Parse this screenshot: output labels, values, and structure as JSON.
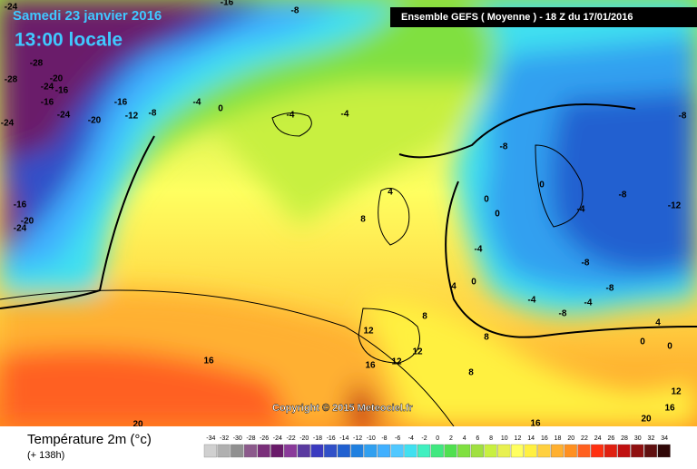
{
  "header": {
    "date": "Samedi 23 janvier 2016",
    "time": "13:00 locale",
    "model": "Ensemble GEFS  ( Moyenne )  -  18 Z du 17/01/2016"
  },
  "copyright": "Copyright © 2015 Meteociel.fr",
  "footer": {
    "title": "Température 2m (°c)",
    "lead": "(+ 138h)"
  },
  "scale": {
    "labels": [
      -34,
      -32,
      -30,
      -28,
      -26,
      -24,
      -22,
      -20,
      -18,
      -16,
      -14,
      -12,
      -10,
      -8,
      -6,
      -4,
      -2,
      0,
      2,
      4,
      6,
      8,
      10,
      12,
      14,
      16,
      18,
      20,
      22,
      24,
      26,
      28,
      30,
      32,
      34
    ],
    "colors": [
      "#d0d0d0",
      "#b0b0b0",
      "#909090",
      "#8c5a8c",
      "#7a2f7a",
      "#6a1a6a",
      "#8a3a9a",
      "#5a3aa0",
      "#3a3ac0",
      "#3050c8",
      "#2060d0",
      "#2080e0",
      "#30a0f0",
      "#40b0ff",
      "#50c8ff",
      "#40e0f0",
      "#40f0c0",
      "#40e880",
      "#50e050",
      "#80e040",
      "#a0e040",
      "#c8f040",
      "#e8f050",
      "#ffff60",
      "#fff040",
      "#ffd040",
      "#ffb030",
      "#ff9020",
      "#ff6020",
      "#ff3010",
      "#e02010",
      "#c01010",
      "#901010",
      "#601010",
      "#300808"
    ]
  },
  "contour_labels": [
    -24,
    -16,
    -8,
    -28,
    -28,
    -20,
    -16,
    -16,
    -24,
    -24,
    -24,
    -20,
    -16,
    -12,
    -8,
    -4,
    0,
    -4,
    -4,
    -8,
    -8,
    0,
    -8,
    -12,
    0,
    0,
    -4,
    -4,
    -8,
    -16,
    -20,
    -24,
    4,
    8,
    4,
    0,
    -4,
    -8,
    -4,
    -8,
    4,
    0,
    0,
    8,
    12,
    12,
    12,
    16,
    16,
    8,
    8,
    12,
    16,
    20,
    16,
    20
  ]
}
